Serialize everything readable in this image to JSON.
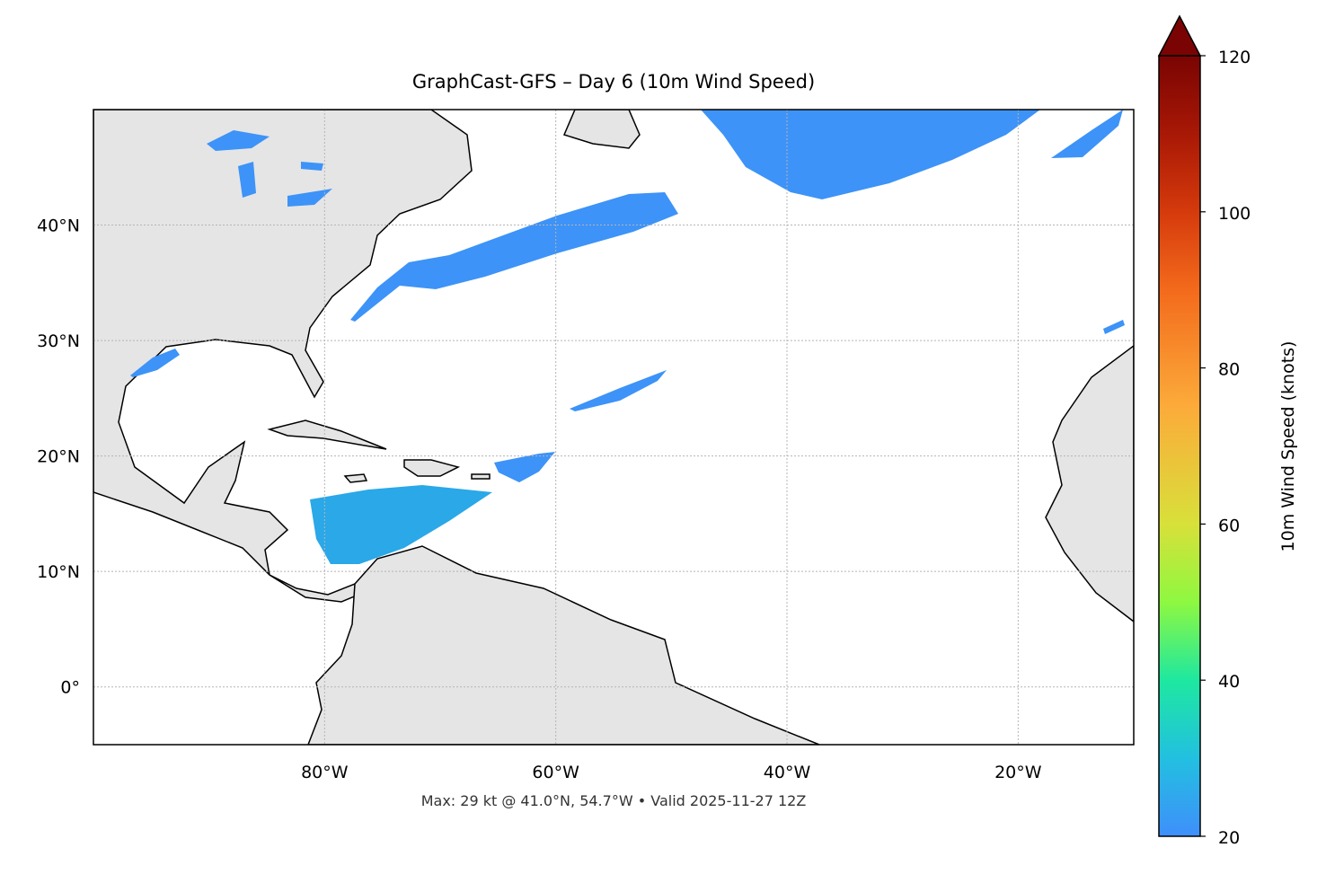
{
  "chart_data": {
    "type": "map",
    "title": "GraphCast-GFS – Day 6 (10m Wind Speed)",
    "footer": "Max: 29 kt @ 41.0°N, 54.7°W • Valid 2025-11-27 12Z",
    "xlim": [
      -100,
      -10
    ],
    "ylim": [
      -5,
      50
    ],
    "xticks": [
      {
        "value": -80,
        "label": "80°W"
      },
      {
        "value": -60,
        "label": "60°W"
      },
      {
        "value": -40,
        "label": "40°W"
      },
      {
        "value": -20,
        "label": "20°W"
      }
    ],
    "yticks": [
      {
        "value": 0,
        "label": "0°"
      },
      {
        "value": 10,
        "label": "10°N"
      },
      {
        "value": 20,
        "label": "20°N"
      },
      {
        "value": 30,
        "label": "30°N"
      },
      {
        "value": 40,
        "label": "40°N"
      }
    ],
    "grid": true,
    "colorbar": {
      "label": "10m Wind Speed (knots)",
      "lim": [
        20,
        120
      ],
      "ticks": [
        20,
        40,
        60,
        80,
        100,
        120
      ]
    }
  }
}
